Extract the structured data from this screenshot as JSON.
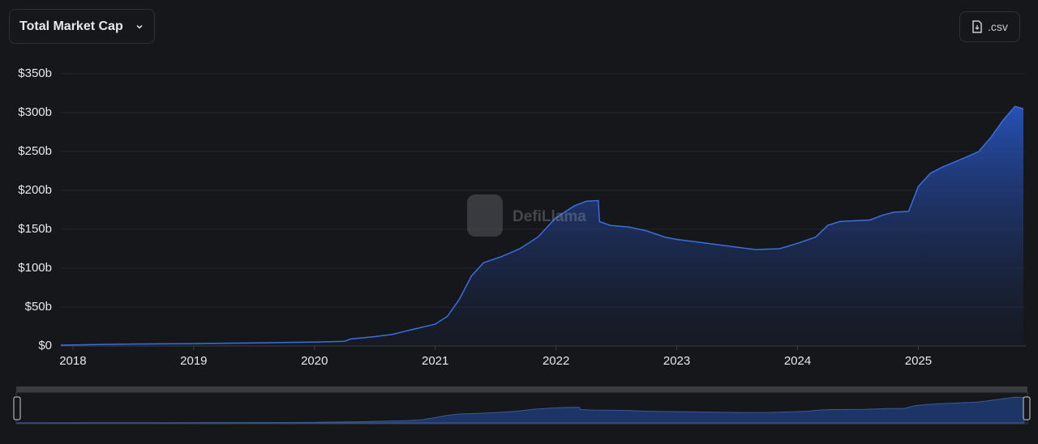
{
  "toolbar": {
    "dropdown": "Total Market Cap",
    "export": ".csv"
  },
  "watermark": "DefiLlama",
  "chart_data": {
    "type": "area",
    "color": "#3a6ee0",
    "x": [
      2017.9,
      2018.5,
      2019.0,
      2019.5,
      2020.0,
      2020.25,
      2020.3,
      2020.5,
      2020.65,
      2020.75,
      2021.0,
      2021.1,
      2021.2,
      2021.3,
      2021.4,
      2021.55,
      2021.7,
      2021.85,
      2022.0,
      2022.15,
      2022.25,
      2022.35,
      2022.36,
      2022.45,
      2022.6,
      2022.75,
      2022.9,
      2023.0,
      2023.2,
      2023.5,
      2023.65,
      2023.85,
      2024.0,
      2024.15,
      2024.25,
      2024.35,
      2024.6,
      2024.7,
      2024.8,
      2024.92,
      2025.0,
      2025.1,
      2025.2,
      2025.4,
      2025.5,
      2025.6,
      2025.7,
      2025.8,
      2025.87
    ],
    "values": [
      1,
      2.5,
      3,
      4,
      5,
      6,
      9,
      12,
      15,
      19,
      28,
      38,
      60,
      90,
      107,
      115,
      125,
      140,
      165,
      180,
      186,
      187,
      160,
      155,
      153,
      148,
      140,
      137,
      133,
      127,
      124,
      125,
      132,
      140,
      155,
      160,
      162,
      168,
      172,
      173,
      205,
      222,
      230,
      243,
      250,
      268,
      290,
      308,
      305
    ],
    "xlim": [
      2017.9,
      2025.89
    ],
    "xticks": [
      2018,
      2019,
      2020,
      2021,
      2022,
      2023,
      2024,
      2025
    ],
    "ylim": [
      0,
      350
    ],
    "yticks": [
      {
        "value": 0,
        "label": "$0"
      },
      {
        "value": 50,
        "label": "$50b"
      },
      {
        "value": 100,
        "label": "$100b"
      },
      {
        "value": 150,
        "label": "$150b"
      },
      {
        "value": 200,
        "label": "$200b"
      },
      {
        "value": 250,
        "label": "$250b"
      },
      {
        "value": 300,
        "label": "$300b"
      },
      {
        "value": 350,
        "label": "$350b"
      }
    ],
    "grid": true
  }
}
